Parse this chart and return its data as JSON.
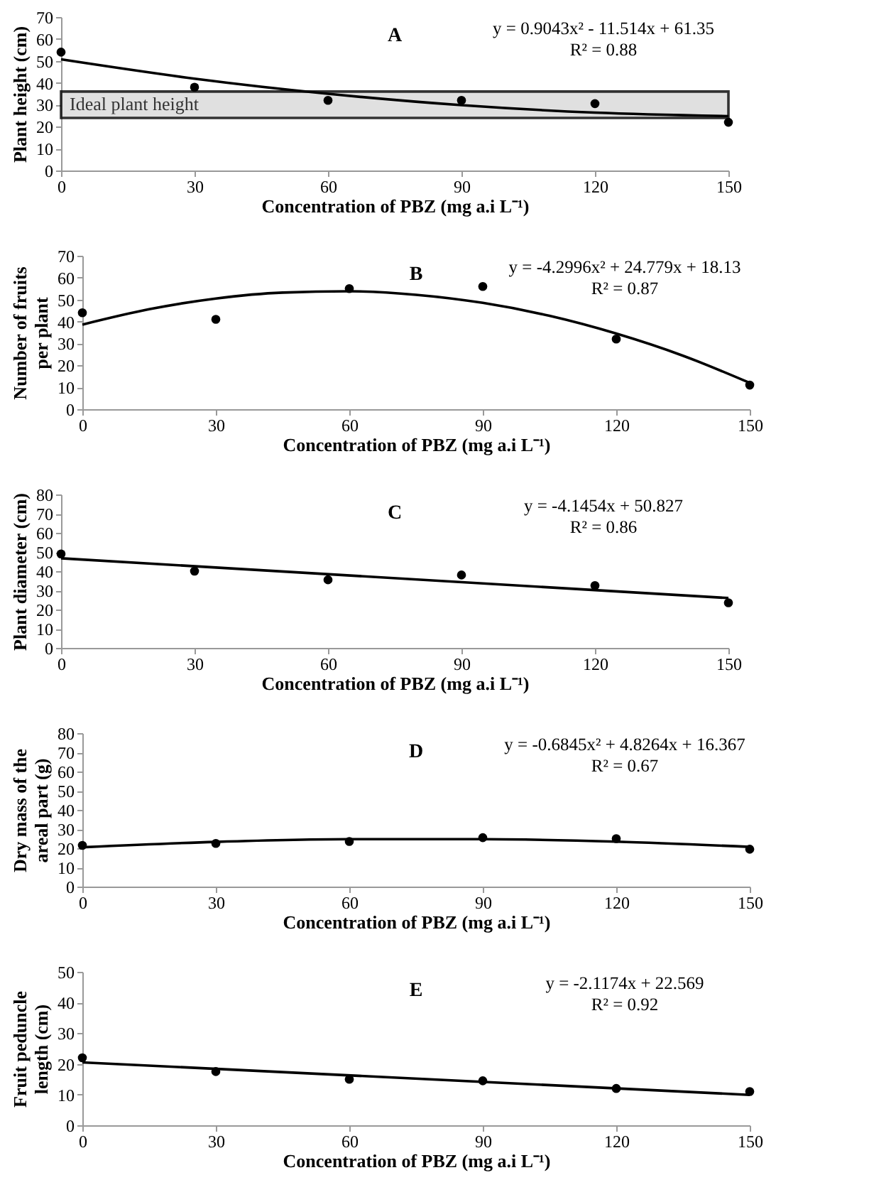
{
  "chart_data": [
    {
      "type": "scatter",
      "title": "A",
      "xlabel": "Concentration of PBZ (mg a.i L⁻¹)",
      "ylabel": "Plant height (cm)",
      "xlim": [
        0,
        150
      ],
      "xticks": [
        0,
        30,
        60,
        90,
        120,
        150
      ],
      "ylim": [
        0,
        70
      ],
      "yticks": [
        0,
        10,
        20,
        30,
        40,
        50,
        60,
        70
      ],
      "grid": false,
      "marker": "circle",
      "x": [
        0,
        30,
        60,
        90,
        120,
        150
      ],
      "annotations": [
        "y = 0.9043x² - 11.514x + 61.35",
        "R² = 0.88"
      ],
      "bands": [
        {
          "axis": "y",
          "from": 24,
          "to": 36,
          "label": "Ideal plant height",
          "color": "#d9d9d9"
        }
      ],
      "series": [
        {
          "type": "scatter",
          "color": "#000000",
          "values": [
            54,
            38,
            32,
            32,
            30.5,
            22
          ]
        },
        {
          "type": "line",
          "color": "#000000",
          "marker": "none",
          "x": [
            0,
            30,
            60,
            90,
            120,
            150
          ],
          "values": [
            50.7,
            41.9,
            35,
            29.8,
            26.4,
            24.8
          ]
        }
      ]
    },
    {
      "type": "scatter",
      "title": "B",
      "xlabel": "Concentration of PBZ (mg a.i L⁻¹)",
      "ylabel": "Number of fruits per plant",
      "xlim": [
        0,
        150
      ],
      "xticks": [
        0,
        30,
        60,
        90,
        120,
        150
      ],
      "ylim": [
        0,
        70
      ],
      "yticks": [
        0,
        10,
        20,
        30,
        40,
        50,
        60,
        70
      ],
      "grid": false,
      "marker": "circle",
      "x": [
        0,
        30,
        60,
        90,
        120,
        150
      ],
      "annotations": [
        "y = -4.2996x² + 24.779x + 18.13",
        "R² = 0.87"
      ],
      "series": [
        {
          "type": "scatter",
          "color": "#000000",
          "values": [
            44,
            41,
            55,
            56,
            32,
            11
          ]
        },
        {
          "type": "line",
          "color": "#000000",
          "marker": "none",
          "x": [
            0,
            15,
            30,
            45,
            60,
            75,
            90,
            105,
            120,
            135,
            150
          ],
          "values": [
            38.6,
            45.6,
            50.5,
            53.2,
            53.8,
            52.2,
            48.5,
            42.6,
            34.5,
            24.4,
            12
          ]
        }
      ]
    },
    {
      "type": "scatter",
      "title": "C",
      "xlabel": "Concentration of PBZ (mg a.i L⁻¹)",
      "ylabel": "Plant diameter (cm)",
      "xlim": [
        0,
        150
      ],
      "xticks": [
        0,
        30,
        60,
        90,
        120,
        150
      ],
      "ylim": [
        0,
        80
      ],
      "yticks": [
        0,
        10,
        20,
        30,
        40,
        50,
        60,
        70,
        80
      ],
      "grid": false,
      "marker": "circle",
      "x": [
        0,
        30,
        60,
        90,
        120,
        150
      ],
      "annotations": [
        "y = -4.1454x + 50.827",
        "R² = 0.86"
      ],
      "series": [
        {
          "type": "scatter",
          "color": "#000000",
          "values": [
            49,
            40,
            35.5,
            38,
            32.5,
            23.5
          ]
        },
        {
          "type": "line",
          "color": "#000000",
          "marker": "none",
          "x": [
            0,
            150
          ],
          "values": [
            46.7,
            26
          ]
        }
      ]
    },
    {
      "type": "scatter",
      "title": "D",
      "xlabel": "Concentration of PBZ (mg  a.i L⁻¹)",
      "ylabel": "Dry mass of the areal part (g)",
      "xlim": [
        0,
        150
      ],
      "xticks": [
        0,
        30,
        60,
        90,
        120,
        150
      ],
      "ylim": [
        0,
        80
      ],
      "yticks": [
        0,
        10,
        20,
        30,
        40,
        50,
        60,
        70,
        80
      ],
      "grid": false,
      "marker": "circle",
      "x": [
        0,
        30,
        60,
        90,
        120,
        150
      ],
      "annotations": [
        "y = -0.6845x² + 4.8264x + 16.367",
        "R² = 0.67"
      ],
      "series": [
        {
          "type": "scatter",
          "color": "#000000",
          "values": [
            21.5,
            22.5,
            23.5,
            25.5,
            25,
            19.5
          ]
        },
        {
          "type": "line",
          "color": "#000000",
          "marker": "none",
          "x": [
            0,
            30,
            60,
            90,
            120,
            150
          ],
          "values": [
            20.5,
            23.3,
            24.7,
            24.7,
            23.4,
            20.7
          ]
        }
      ]
    },
    {
      "type": "scatter",
      "title": "E",
      "xlabel": "Concentration of PBZ (mg  a.i L⁻¹)",
      "ylabel": "Fruit peduncle length (cm)",
      "xlim": [
        0,
        150
      ],
      "xticks": [
        0,
        30,
        60,
        90,
        120,
        150
      ],
      "ylim": [
        0,
        50
      ],
      "yticks": [
        0,
        10,
        20,
        30,
        40,
        50
      ],
      "grid": false,
      "marker": "circle",
      "x": [
        0,
        30,
        60,
        90,
        120,
        150
      ],
      "annotations": [
        "y = -2.1174x + 22.569",
        "R² = 0.92"
      ],
      "series": [
        {
          "type": "scatter",
          "color": "#000000",
          "values": [
            22,
            17.5,
            15,
            14.5,
            12,
            11
          ]
        },
        {
          "type": "line",
          "color": "#000000",
          "marker": "none",
          "x": [
            0,
            150
          ],
          "values": [
            20.5,
            9.9
          ]
        }
      ]
    }
  ]
}
